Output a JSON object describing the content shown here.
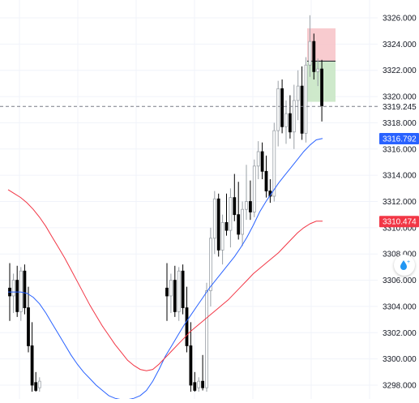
{
  "chart_data": {
    "type": "candlestick",
    "price_axis": {
      "ticks": [
        "3326.000",
        "3324.000",
        "3322.000",
        "3320.000",
        "3318.000",
        "3316.000",
        "3314.000",
        "3312.000",
        "3310.000",
        "3308.000",
        "3306.000",
        "3304.000",
        "3302.000",
        "3300.000",
        "3298.000"
      ],
      "ylim": [
        3297.5,
        3327.0
      ],
      "position": "right"
    },
    "current_price": {
      "value": 3319.245,
      "label": "3319.245",
      "line_style": "dashed",
      "color": "#787b86"
    },
    "indicators": [
      {
        "name": "",
        "color": "#2962ff",
        "last_value": 3316.792,
        "last_label": "3316.792",
        "values": [
          3305.1,
          3305.1,
          3305.1,
          3305.0,
          3304.7,
          3304.2,
          3303.5,
          3302.7,
          3301.9,
          3301.1,
          3300.3,
          3299.6,
          3299.0,
          3298.5,
          3298.0,
          3297.6,
          3297.2,
          3297.0,
          3296.9,
          3296.9,
          3297.0,
          3297.2,
          3297.6,
          3298.3,
          3299.2,
          3300.2,
          3301.0,
          3301.8,
          3302.6,
          3303.3,
          3304.0,
          3304.7,
          3305.4,
          3306.0,
          3306.6,
          3307.2,
          3307.8,
          3308.5,
          3309.3,
          3310.2,
          3311.2,
          3312.0,
          3312.7,
          3313.4,
          3314.0,
          3314.6,
          3315.2,
          3315.8,
          3316.3,
          3316.7,
          3316.8
        ]
      },
      {
        "name": "",
        "color": "#f23645",
        "last_value": 3310.474,
        "last_label": "3310.474",
        "values": [
          3312.9,
          3312.6,
          3312.3,
          3311.9,
          3311.4,
          3310.8,
          3310.1,
          3309.3,
          3308.5,
          3307.7,
          3306.8,
          3305.9,
          3305.0,
          3304.1,
          3303.3,
          3302.5,
          3301.8,
          3301.1,
          3300.5,
          3299.9,
          3299.5,
          3299.2,
          3299.1,
          3299.2,
          3299.6,
          3300.1,
          3300.6,
          3301.1,
          3301.6,
          3302.1,
          3302.5,
          3302.9,
          3303.3,
          3303.7,
          3304.1,
          3304.5,
          3305.0,
          3305.5,
          3306.0,
          3306.5,
          3306.9,
          3307.3,
          3307.7,
          3308.1,
          3308.6,
          3309.1,
          3309.6,
          3310.0,
          3310.3,
          3310.5,
          3310.5
        ]
      }
    ],
    "candles": [
      {
        "o": 3305.4,
        "h": 3307.3,
        "l": 3302.9,
        "c": 3304.8
      },
      {
        "o": 3304.8,
        "h": 3306.5,
        "l": 3303.5,
        "c": 3306.0
      },
      {
        "o": 3306.0,
        "h": 3307.1,
        "l": 3303.2,
        "c": 3303.6
      },
      {
        "o": 3303.6,
        "h": 3307.0,
        "l": 3302.9,
        "c": 3306.7
      },
      {
        "o": 3306.7,
        "h": 3307.2,
        "l": 3303.4,
        "c": 3303.9
      },
      {
        "o": 3303.9,
        "h": 3305.5,
        "l": 3300.5,
        "c": 3301.0
      },
      {
        "o": 3301.0,
        "h": 3302.8,
        "l": 3297.5,
        "c": 3298.0
      },
      {
        "o": 3298.2,
        "h": 3299.0,
        "l": 3297.5,
        "c": 3297.6
      },
      {
        "o": 3297.8,
        "h": 3298.6,
        "l": 3297.5,
        "c": 3298.3
      },
      {
        "o": 3298.3,
        "h": 3300.3,
        "l": 3297.6,
        "c": 3297.8
      },
      {
        "o": 3297.8,
        "h": 3305.8,
        "l": 3297.5,
        "c": 3305.2
      },
      {
        "o": 3305.2,
        "h": 3310.0,
        "l": 3304.0,
        "c": 3309.2
      },
      {
        "o": 3309.2,
        "h": 3312.8,
        "l": 3308.0,
        "c": 3312.2
      },
      {
        "o": 3312.2,
        "h": 3312.6,
        "l": 3307.8,
        "c": 3308.3
      },
      {
        "o": 3308.3,
        "h": 3311.0,
        "l": 3307.2,
        "c": 3310.4
      },
      {
        "o": 3310.4,
        "h": 3312.6,
        "l": 3309.4,
        "c": 3309.8
      },
      {
        "o": 3309.8,
        "h": 3313.0,
        "l": 3308.5,
        "c": 3312.3
      },
      {
        "o": 3312.3,
        "h": 3314.1,
        "l": 3310.5,
        "c": 3311.0
      },
      {
        "o": 3311.0,
        "h": 3313.5,
        "l": 3309.1,
        "c": 3309.5
      },
      {
        "o": 3309.5,
        "h": 3312.0,
        "l": 3308.6,
        "c": 3311.4
      },
      {
        "o": 3311.4,
        "h": 3314.8,
        "l": 3310.6,
        "c": 3312.0
      },
      {
        "o": 3312.0,
        "h": 3313.6,
        "l": 3310.6,
        "c": 3311.2
      },
      {
        "o": 3311.2,
        "h": 3315.2,
        "l": 3310.8,
        "c": 3314.7
      },
      {
        "o": 3314.7,
        "h": 3316.6,
        "l": 3313.7,
        "c": 3315.8
      },
      {
        "o": 3315.8,
        "h": 3316.5,
        "l": 3313.7,
        "c": 3314.3
      },
      {
        "o": 3314.3,
        "h": 3315.5,
        "l": 3312.3,
        "c": 3312.8
      },
      {
        "o": 3312.8,
        "h": 3313.7,
        "l": 3311.9,
        "c": 3312.4
      },
      {
        "o": 3312.4,
        "h": 3318.0,
        "l": 3312.0,
        "c": 3317.4
      },
      {
        "o": 3317.4,
        "h": 3321.2,
        "l": 3316.2,
        "c": 3320.6
      },
      {
        "o": 3320.6,
        "h": 3321.3,
        "l": 3317.2,
        "c": 3317.7
      },
      {
        "o": 3317.7,
        "h": 3319.7,
        "l": 3316.4,
        "c": 3318.7
      },
      {
        "o": 3318.7,
        "h": 3320.1,
        "l": 3316.8,
        "c": 3317.3
      },
      {
        "o": 3317.3,
        "h": 3320.9,
        "l": 3316.0,
        "c": 3319.7
      },
      {
        "o": 3319.7,
        "h": 3322.0,
        "l": 3318.2,
        "c": 3320.8
      },
      {
        "o": 3320.8,
        "h": 3322.3,
        "l": 3316.7,
        "c": 3317.2
      },
      {
        "o": 3317.2,
        "h": 3323.0,
        "l": 3316.5,
        "c": 3322.4
      },
      {
        "o": 3322.4,
        "h": 3326.2,
        "l": 3321.5,
        "c": 3324.2
      },
      {
        "o": 3324.2,
        "h": 3324.8,
        "l": 3321.3,
        "c": 3321.9
      },
      {
        "o": 3321.9,
        "h": 3322.9,
        "l": 3320.8,
        "c": 3322.1
      },
      {
        "o": 3322.1,
        "h": 3322.8,
        "l": 3318.1,
        "c": 3319.3
      }
    ],
    "position_tool": {
      "entry": 3322.7,
      "stop": 3325.2,
      "target": 3319.6,
      "stop_color": "#f7c5ca",
      "target_color": "#c9e7c5"
    },
    "grid": true
  }
}
